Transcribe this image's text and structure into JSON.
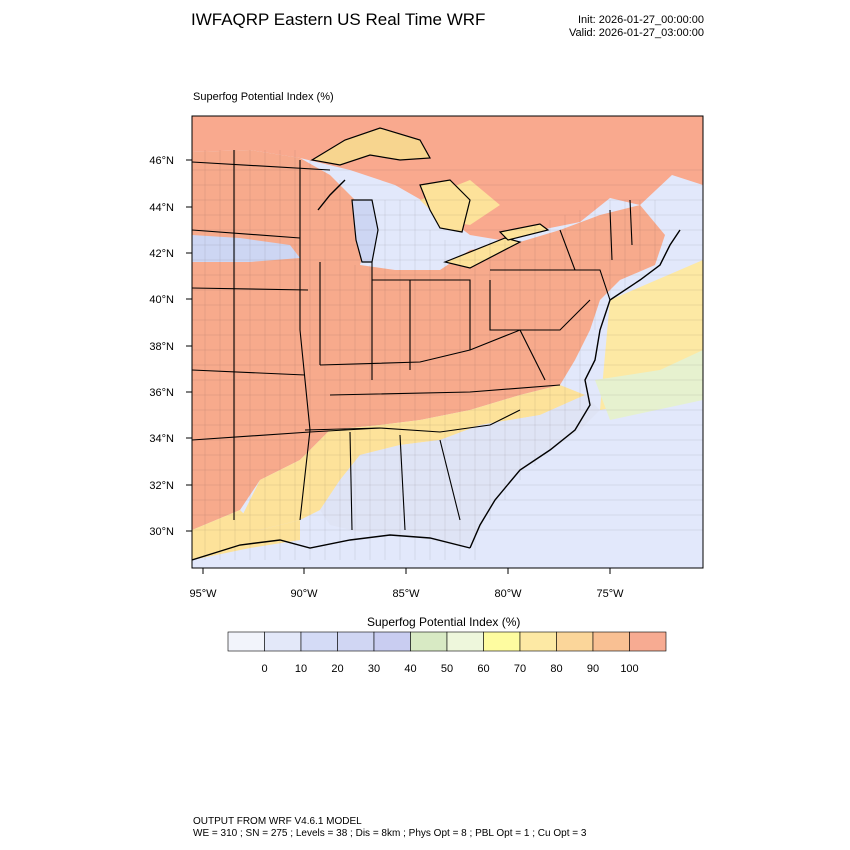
{
  "header": {
    "title": "IWFAQRP Eastern US Real Time WRF",
    "init": "Init: 2026-01-27_00:00:00",
    "valid": "Valid: 2026-01-27_03:00:00"
  },
  "map": {
    "field_label": "Superfog Potential Index   (%)",
    "lat_labels": [
      "46°N",
      "44°N",
      "42°N",
      "40°N",
      "38°N",
      "36°N",
      "34°N",
      "32°N",
      "30°N"
    ],
    "lon_labels": [
      "95°W",
      "90°W",
      "85°W",
      "80°W",
      "75°W"
    ],
    "colors": {
      "land_high": "#f7aa8c",
      "land_mid": "#fde29a",
      "land_low": "#dfe4f5",
      "lake_blue": "#cdd6f3",
      "water": "#e2e8fb",
      "canada": "#f9a98e"
    }
  },
  "colorbar": {
    "title": "Superfog Potential Index  (%)",
    "ticks": [
      "0",
      "10",
      "20",
      "30",
      "40",
      "50",
      "60",
      "70",
      "80",
      "90",
      "100"
    ],
    "colors": [
      "#f2f4fb",
      "#e3e8f9",
      "#d4dbf6",
      "#d0d6f3",
      "#c9cdf1",
      "#d8eac4",
      "#eef7dc",
      "#fefca0",
      "#fde9a4",
      "#fbd69a",
      "#f9c093",
      "#f7ab92"
    ]
  },
  "footer": {
    "line1": "OUTPUT FROM WRF V4.6.1 MODEL",
    "line2": "WE = 310 ; SN = 275 ; Levels = 38 ; Dis = 8km ; Phys Opt = 8 ; PBL Opt = 1 ; Cu Opt = 3"
  }
}
